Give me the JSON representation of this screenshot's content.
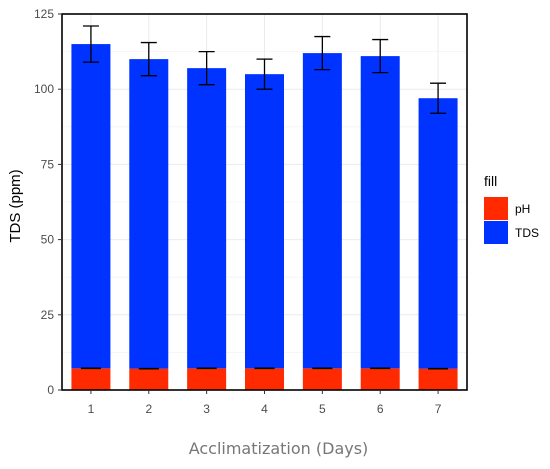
{
  "chart_data": {
    "type": "bar",
    "stacked": true,
    "categories": [
      "1",
      "2",
      "3",
      "4",
      "5",
      "6",
      "7"
    ],
    "series": [
      {
        "name": "pH",
        "color": "#ff2a00",
        "values": [
          7.2,
          7.1,
          7.2,
          7.2,
          7.2,
          7.2,
          7.1
        ],
        "error": [
          0.1,
          0.1,
          0.1,
          0.1,
          0.1,
          0.1,
          0.1
        ]
      },
      {
        "name": "TDS",
        "color": "#0033ff",
        "values": [
          115,
          110,
          107,
          105,
          112,
          111,
          97
        ],
        "error": [
          6,
          5.5,
          5.5,
          5,
          5.5,
          5.5,
          5
        ]
      }
    ],
    "xlabel": "Acclimatization (Days)",
    "ylabel": "TDS (ppm)",
    "ylim": [
      0,
      125
    ],
    "yticks": [
      "0",
      "25",
      "50",
      "75",
      "100",
      "125"
    ],
    "legend_title": "fill",
    "legend_position": "right",
    "grid": true
  }
}
